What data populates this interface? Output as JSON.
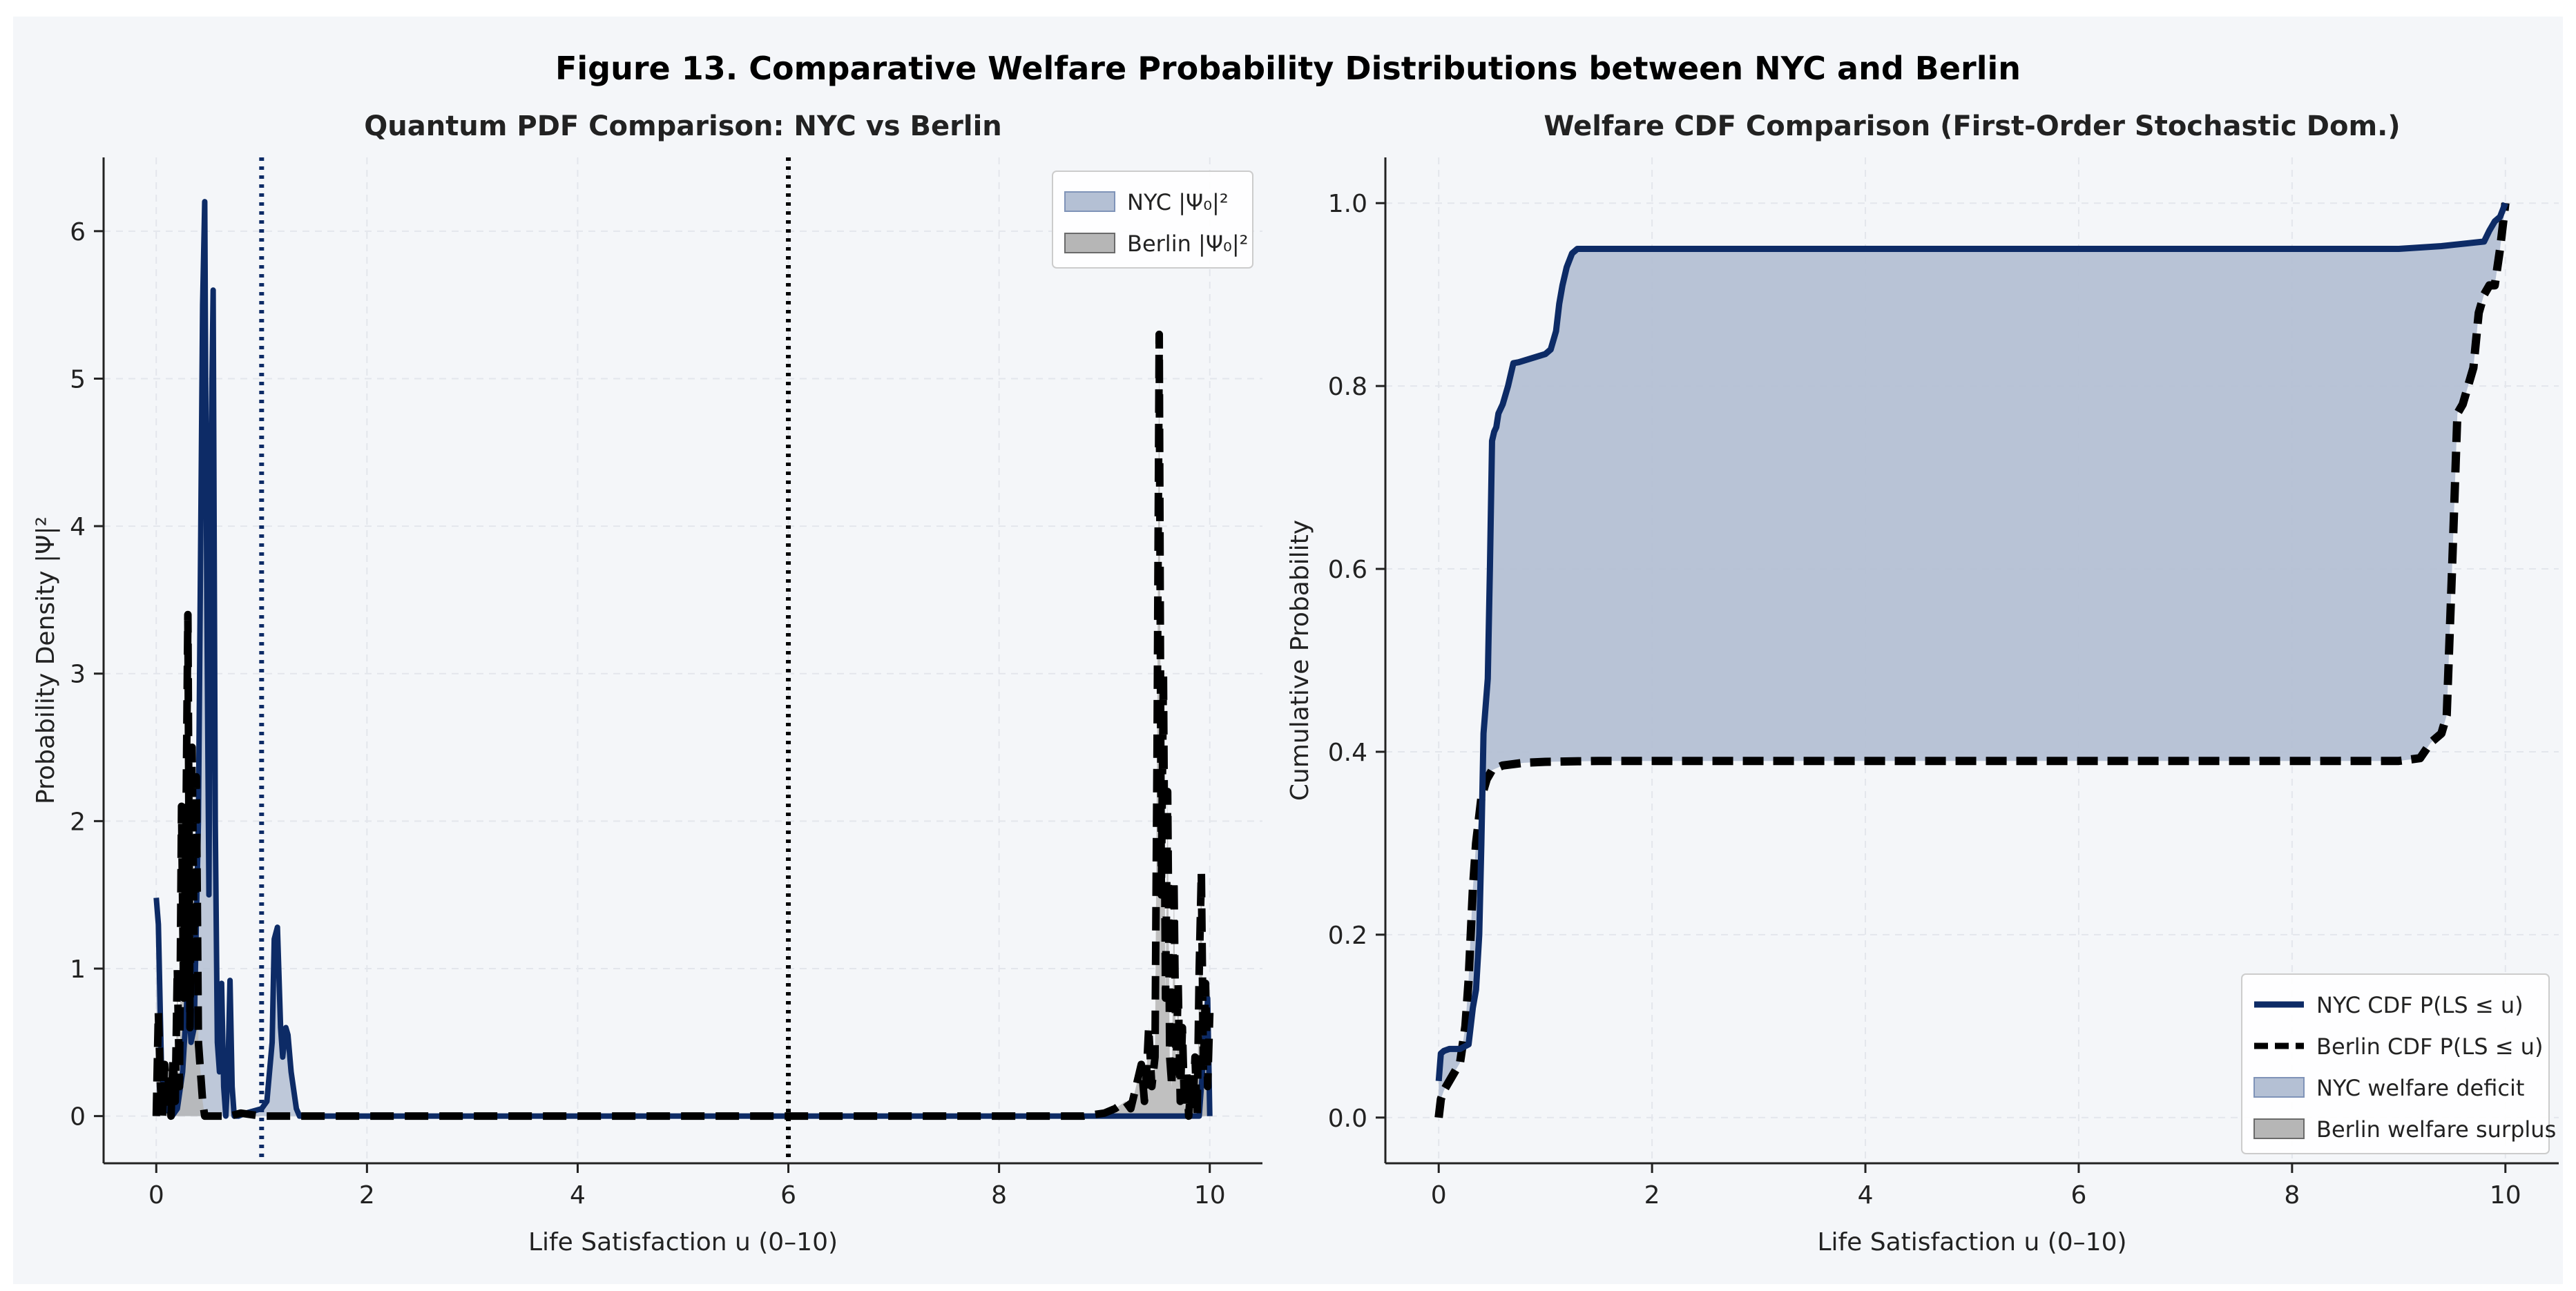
{
  "figure_title": "Figure 13. Comparative Welfare Probability Distributions between NYC and Berlin",
  "colors": {
    "nyc": "#0d2b66",
    "berlin": "#000000",
    "nyc_fill": "#b4c0d4",
    "berlin_fill": "#b6b6b6",
    "panel_bg": "#f4f6f9",
    "grid": "#e3e6ec"
  },
  "chart_data": [
    {
      "type": "line",
      "title": "Quantum PDF Comparison: NYC vs Berlin",
      "xlabel": "Life Satisfaction u (0–10)",
      "ylabel": "Probability Density |Ψ|²",
      "xlim": [
        -0.5,
        10.5
      ],
      "ylim": [
        -0.32,
        6.5
      ],
      "xticks": [
        0,
        2,
        4,
        6,
        8,
        10
      ],
      "yticks": [
        0,
        1,
        2,
        3,
        4,
        5,
        6
      ],
      "grid": true,
      "legend_position": "top-right",
      "legend": [
        {
          "label": "NYC |Ψ₀|²",
          "kind": "patch",
          "series": "nyc"
        },
        {
          "label": "Berlin |Ψ₀|²",
          "kind": "patch",
          "series": "berlin"
        }
      ],
      "vlines": [
        {
          "x": 1.0,
          "style": "dotted",
          "color": "#0d2b66"
        },
        {
          "x": 6.0,
          "style": "dotted",
          "color": "#000000"
        }
      ],
      "series": [
        {
          "key": "nyc",
          "style": "solid",
          "fill": true,
          "x": [
            0,
            0.02,
            0.05,
            0.1,
            0.15,
            0.2,
            0.25,
            0.3,
            0.33,
            0.36,
            0.4,
            0.44,
            0.46,
            0.48,
            0.5,
            0.52,
            0.54,
            0.56,
            0.58,
            0.6,
            0.62,
            0.64,
            0.66,
            0.68,
            0.7,
            0.72,
            0.74,
            0.78,
            0.85,
            0.9,
            1.0,
            1.05,
            1.1,
            1.12,
            1.15,
            1.18,
            1.2,
            1.23,
            1.25,
            1.28,
            1.3,
            1.33,
            1.36,
            1.4,
            1.5,
            2,
            3,
            4,
            5,
            6,
            7,
            8,
            9,
            9.3,
            9.5,
            9.7,
            9.8,
            9.9,
            9.95,
            9.98,
            10.0
          ],
          "y": [
            1.48,
            1.3,
            0.3,
            0.05,
            0.0,
            0.05,
            0.3,
            0.9,
            0.5,
            0.6,
            2.0,
            5.5,
            6.2,
            3.5,
            1.5,
            4.5,
            5.6,
            2.0,
            0.5,
            0.3,
            0.9,
            0.2,
            0.0,
            0.3,
            0.92,
            0.2,
            0.0,
            0.0,
            0.02,
            0.03,
            0.05,
            0.1,
            0.5,
            1.2,
            1.28,
            0.6,
            0.4,
            0.6,
            0.55,
            0.3,
            0.2,
            0.05,
            0.0,
            0.0,
            0.0,
            0.0,
            0.0,
            0.0,
            0.0,
            0.0,
            0.0,
            0.0,
            0.0,
            0.0,
            0.0,
            0.0,
            0.0,
            0.0,
            0.5,
            0.8,
            0.0
          ]
        },
        {
          "key": "berlin",
          "style": "dashed",
          "fill": true,
          "x": [
            0,
            0.02,
            0.04,
            0.06,
            0.08,
            0.1,
            0.12,
            0.14,
            0.16,
            0.18,
            0.2,
            0.22,
            0.24,
            0.26,
            0.28,
            0.3,
            0.32,
            0.34,
            0.36,
            0.38,
            0.4,
            0.42,
            0.44,
            0.46,
            0.5,
            0.55,
            0.6,
            0.7,
            0.8,
            1.0,
            1.2,
            1.5,
            2,
            3,
            4,
            5,
            6,
            7,
            8,
            8.8,
            9.0,
            9.1,
            9.2,
            9.25,
            9.3,
            9.35,
            9.38,
            9.4,
            9.42,
            9.45,
            9.48,
            9.5,
            9.52,
            9.54,
            9.56,
            9.58,
            9.6,
            9.62,
            9.64,
            9.66,
            9.68,
            9.7,
            9.72,
            9.74,
            9.76,
            9.78,
            9.8,
            9.82,
            9.84,
            9.86,
            9.88,
            9.9,
            9.92,
            9.94,
            9.96,
            9.98,
            10.0
          ],
          "y": [
            0.0,
            0.7,
            0.2,
            0.0,
            0.35,
            0.05,
            0.3,
            0.0,
            0.4,
            0.1,
            1.0,
            0.2,
            2.1,
            0.8,
            1.8,
            3.4,
            0.6,
            2.5,
            1.1,
            2.3,
            0.5,
            0.3,
            0.1,
            0.0,
            0.0,
            0.0,
            0.0,
            0.0,
            0.02,
            0.0,
            0.0,
            0.0,
            0.0,
            0.0,
            0.0,
            0.0,
            0.0,
            0.0,
            0.0,
            0.0,
            0.02,
            0.05,
            0.1,
            0.05,
            0.2,
            0.35,
            0.1,
            0.3,
            0.6,
            0.2,
            0.4,
            2.5,
            5.3,
            1.5,
            3.0,
            0.8,
            2.2,
            0.4,
            0.2,
            1.6,
            0.3,
            0.9,
            0.1,
            0.6,
            0.05,
            0.3,
            0.0,
            0.2,
            0.05,
            0.4,
            0.0,
            1.0,
            1.65,
            0.3,
            0.9,
            0.2,
            0.7
          ]
        }
      ]
    },
    {
      "type": "line",
      "title": "Welfare CDF Comparison (First-Order Stochastic Dom.)",
      "xlabel": "Life Satisfaction u (0–10)",
      "ylabel": "Cumulative Probability",
      "xlim": [
        -0.5,
        10.5
      ],
      "ylim": [
        -0.05,
        1.05
      ],
      "xticks": [
        0,
        2,
        4,
        6,
        8,
        10
      ],
      "yticks": [
        0.0,
        0.2,
        0.4,
        0.6,
        0.8,
        1.0
      ],
      "grid": true,
      "legend_position": "bottom-right",
      "legend": [
        {
          "label": "NYC CDF P(LS ≤ u)",
          "kind": "line",
          "series": "nyc"
        },
        {
          "label": "Berlin CDF P(LS ≤ u)",
          "kind": "dashed",
          "series": "berlin"
        },
        {
          "label": "NYC welfare deficit",
          "kind": "patch",
          "series": "nyc"
        },
        {
          "label": "Berlin welfare surplus",
          "kind": "patch",
          "series": "berlin"
        }
      ],
      "series": [
        {
          "key": "nyc",
          "style": "solid",
          "x": [
            0,
            0.02,
            0.05,
            0.1,
            0.2,
            0.28,
            0.3,
            0.32,
            0.35,
            0.38,
            0.4,
            0.42,
            0.44,
            0.46,
            0.48,
            0.5,
            0.52,
            0.54,
            0.56,
            0.6,
            0.65,
            0.7,
            0.75,
            1.0,
            1.05,
            1.1,
            1.13,
            1.16,
            1.2,
            1.25,
            1.3,
            2,
            4,
            6,
            8,
            9,
            9.4,
            9.8,
            9.85,
            9.9,
            9.95,
            10.0
          ],
          "y": [
            0.04,
            0.07,
            0.073,
            0.075,
            0.075,
            0.08,
            0.1,
            0.12,
            0.14,
            0.2,
            0.3,
            0.42,
            0.45,
            0.48,
            0.6,
            0.74,
            0.75,
            0.755,
            0.77,
            0.78,
            0.8,
            0.825,
            0.826,
            0.835,
            0.84,
            0.86,
            0.89,
            0.91,
            0.93,
            0.945,
            0.95,
            0.95,
            0.95,
            0.95,
            0.95,
            0.95,
            0.953,
            0.958,
            0.97,
            0.98,
            0.985,
            1.0
          ]
        },
        {
          "key": "berlin",
          "style": "dashed",
          "x": [
            0,
            0.02,
            0.05,
            0.1,
            0.15,
            0.2,
            0.25,
            0.28,
            0.3,
            0.32,
            0.35,
            0.4,
            0.45,
            0.5,
            0.6,
            0.8,
            1.0,
            1.5,
            2,
            4,
            6,
            8,
            9.0,
            9.2,
            9.3,
            9.4,
            9.45,
            9.5,
            9.55,
            9.6,
            9.65,
            9.7,
            9.75,
            9.8,
            9.85,
            9.9,
            9.95,
            10.0
          ],
          "y": [
            0.0,
            0.02,
            0.03,
            0.04,
            0.05,
            0.06,
            0.1,
            0.15,
            0.2,
            0.25,
            0.3,
            0.35,
            0.37,
            0.38,
            0.385,
            0.388,
            0.389,
            0.39,
            0.39,
            0.39,
            0.39,
            0.39,
            0.39,
            0.393,
            0.41,
            0.42,
            0.44,
            0.6,
            0.77,
            0.78,
            0.8,
            0.82,
            0.88,
            0.9,
            0.91,
            0.91,
            0.95,
            1.0
          ]
        }
      ]
    }
  ]
}
